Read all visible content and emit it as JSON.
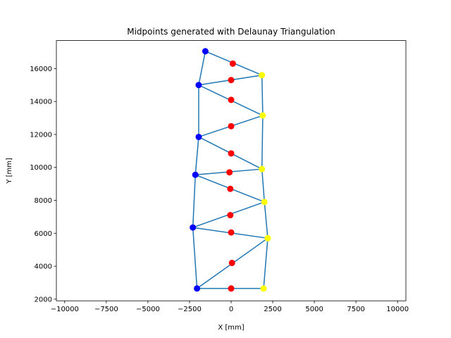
{
  "chart_data": {
    "type": "scatter",
    "title": "Midpoints generated with Delaunay Triangulation",
    "xlabel": "X [mm]",
    "ylabel": "Y [mm]",
    "xlim": [
      -10500,
      10500
    ],
    "ylim": [
      1900,
      17700
    ],
    "xticks": [
      -10000,
      -7500,
      -5000,
      -2500,
      0,
      2500,
      5000,
      7500,
      10000
    ],
    "yticks": [
      2000,
      4000,
      6000,
      8000,
      10000,
      12000,
      14000,
      16000
    ],
    "xtick_labels": [
      "−10000",
      "−7500",
      "−5000",
      "−2500",
      "0",
      "2500",
      "5000",
      "7500",
      "10000"
    ],
    "ytick_labels": [
      "2000",
      "4000",
      "6000",
      "8000",
      "10000",
      "12000",
      "14000",
      "16000"
    ],
    "grid": false,
    "line_color": "#1f77b4",
    "blue_points": {
      "color": "#0000ff",
      "x": [
        -1550,
        -1950,
        -1950,
        -2150,
        -2300,
        -2050
      ],
      "y": [
        17050,
        15000,
        11850,
        9550,
        6350,
        2650
      ]
    },
    "yellow_points": {
      "color": "#ffff00",
      "x": [
        1850,
        1900,
        1850,
        2000,
        2200,
        1950
      ],
      "y": [
        15600,
        13150,
        9900,
        7900,
        5700,
        2650
      ]
    },
    "red_points": {
      "color": "#ff0000",
      "x": [
        100,
        0,
        0,
        0,
        0,
        -100,
        -50,
        -50,
        0,
        50,
        0
      ],
      "y": [
        16300,
        15300,
        14100,
        12500,
        10850,
        9700,
        8700,
        7100,
        6050,
        4200,
        2650
      ]
    },
    "edges": [
      [
        [
          -1550,
          17050
        ],
        [
          -1950,
          15000
        ]
      ],
      [
        [
          -1550,
          17050
        ],
        [
          1850,
          15600
        ]
      ],
      [
        [
          -1950,
          15000
        ],
        [
          1850,
          15600
        ]
      ],
      [
        [
          -1950,
          15000
        ],
        [
          1900,
          13150
        ]
      ],
      [
        [
          1850,
          15600
        ],
        [
          1900,
          13150
        ]
      ],
      [
        [
          -1950,
          15000
        ],
        [
          -1950,
          11850
        ]
      ],
      [
        [
          -1950,
          11850
        ],
        [
          1900,
          13150
        ]
      ],
      [
        [
          1900,
          13150
        ],
        [
          1850,
          9900
        ]
      ],
      [
        [
          -1950,
          11850
        ],
        [
          1850,
          9900
        ]
      ],
      [
        [
          -1950,
          11850
        ],
        [
          -2150,
          9550
        ]
      ],
      [
        [
          -2150,
          9550
        ],
        [
          1850,
          9900
        ]
      ],
      [
        [
          1850,
          9900
        ],
        [
          2000,
          7900
        ]
      ],
      [
        [
          -2150,
          9550
        ],
        [
          2000,
          7900
        ]
      ],
      [
        [
          -2150,
          9550
        ],
        [
          -2300,
          6350
        ]
      ],
      [
        [
          -2300,
          6350
        ],
        [
          2000,
          7900
        ]
      ],
      [
        [
          2000,
          7900
        ],
        [
          2200,
          5700
        ]
      ],
      [
        [
          -2300,
          6350
        ],
        [
          2200,
          5700
        ]
      ],
      [
        [
          -2300,
          6350
        ],
        [
          -2050,
          2650
        ]
      ],
      [
        [
          -2050,
          2650
        ],
        [
          2200,
          5700
        ]
      ],
      [
        [
          2200,
          5700
        ],
        [
          1950,
          2650
        ]
      ],
      [
        [
          -2050,
          2650
        ],
        [
          1950,
          2650
        ]
      ]
    ]
  }
}
